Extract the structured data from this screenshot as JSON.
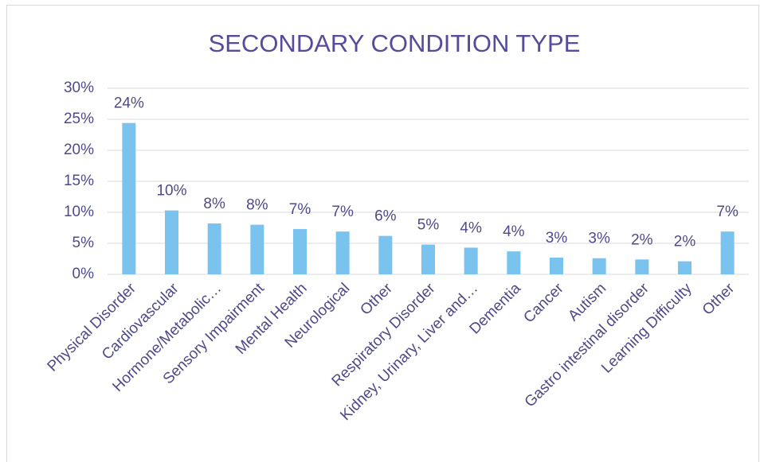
{
  "chart_data": {
    "type": "bar",
    "title": "SECONDARY CONDITION TYPE",
    "categories": [
      "Physical Disorder",
      "Cardiovascular",
      "Hormone/Metabolic…",
      "Sensory Impairment",
      "Mental Health",
      "Neurological",
      "Other",
      "Respiratory Disorder",
      "Kidney, Urinary, Liver and…",
      "Dementia",
      "Cancer",
      "Autism",
      "Gastro intestinal disorder",
      "Learning Difficulty",
      "Other"
    ],
    "values": [
      24.4,
      10.3,
      8.2,
      8.0,
      7.3,
      6.9,
      6.2,
      4.8,
      4.3,
      3.7,
      2.7,
      2.6,
      2.4,
      2.1,
      6.9
    ],
    "value_labels": [
      "24%",
      "10%",
      "8%",
      "8%",
      "7%",
      "7%",
      "6%",
      "5%",
      "4%",
      "4%",
      "3%",
      "3%",
      "2%",
      "2%",
      "7%"
    ],
    "color": "#7ac3ef",
    "ylim": [
      0,
      30
    ],
    "yticks": [
      {
        "value": 0,
        "label": "0%"
      },
      {
        "value": 5,
        "label": "5%"
      },
      {
        "value": 10,
        "label": "10%"
      },
      {
        "value": 15,
        "label": "15%"
      },
      {
        "value": 20,
        "label": "20%"
      },
      {
        "value": 25,
        "label": "25%"
      },
      {
        "value": 30,
        "label": "30%"
      }
    ],
    "grid": true
  }
}
